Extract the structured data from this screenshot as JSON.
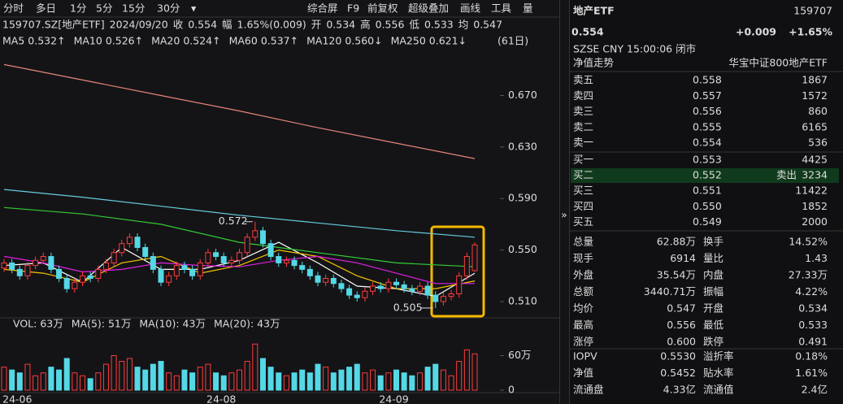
{
  "toolbar": {
    "left_tabs": [
      "分时",
      "多日",
      "1分",
      "5分",
      "15分",
      "30分",
      "▾"
    ],
    "right_tabs": [
      "综合屏",
      "F9",
      "前复权",
      "超级叠加",
      "画线",
      "工具",
      "量"
    ]
  },
  "info_bar": [
    {
      "text": "159707.SZ[地产ETF]",
      "color": "#dddddd"
    },
    {
      "text": "2024/09/20",
      "color": "#dddddd"
    },
    {
      "label": "收",
      "text": "0.554",
      "color": "#ff3b3b"
    },
    {
      "label": "幅",
      "text": "1.65%(0.009)",
      "color": "#ff3b3b"
    },
    {
      "label": "开",
      "text": "0.534",
      "color": "#2ecc40"
    },
    {
      "label": "高",
      "text": "0.556",
      "color": "#ff3b3b"
    },
    {
      "label": "低",
      "text": "0.533",
      "color": "#2ecc40"
    },
    {
      "label": "均",
      "text": "0.547",
      "color": "#ff3b3b"
    }
  ],
  "period": "(61日)",
  "chart_data": {
    "type": "candlestick",
    "categories": [
      null,
      null,
      "24-06",
      null,
      null,
      null,
      null,
      null,
      null,
      null,
      null,
      null,
      null,
      null,
      null,
      null,
      null,
      null,
      null,
      null,
      null,
      null,
      null,
      null,
      null,
      null,
      null,
      null,
      "24-08",
      null,
      null,
      null,
      null,
      null,
      null,
      null,
      null,
      null,
      null,
      null,
      null,
      null,
      null,
      null,
      null,
      null,
      null,
      null,
      null,
      null,
      "24-09",
      null,
      null,
      null,
      null,
      null,
      null,
      null,
      null,
      null,
      null
    ],
    "open": [
      0.536,
      0.54,
      0.535,
      0.53,
      0.538,
      0.542,
      0.545,
      0.535,
      0.528,
      0.52,
      0.525,
      0.53,
      0.528,
      0.535,
      0.54,
      0.548,
      0.555,
      0.56,
      0.552,
      0.545,
      0.535,
      0.525,
      0.53,
      0.538,
      0.535,
      0.53,
      0.54,
      0.548,
      0.545,
      0.54,
      0.542,
      0.548,
      0.56,
      0.565,
      0.555,
      0.545,
      0.54,
      0.542,
      0.538,
      0.535,
      0.53,
      0.525,
      0.528,
      0.524,
      0.52,
      0.515,
      0.513,
      0.518,
      0.522,
      0.52,
      0.525,
      0.523,
      0.52,
      0.518,
      0.522,
      0.515,
      0.51,
      0.514,
      0.516,
      0.53,
      0.534
    ],
    "high": [
      0.543,
      0.543,
      0.538,
      0.541,
      0.545,
      0.548,
      0.548,
      0.538,
      0.531,
      0.528,
      0.533,
      0.533,
      0.538,
      0.543,
      0.551,
      0.558,
      0.563,
      0.563,
      0.555,
      0.548,
      0.538,
      0.533,
      0.541,
      0.541,
      0.538,
      0.543,
      0.551,
      0.551,
      0.548,
      0.545,
      0.551,
      0.563,
      0.572,
      0.568,
      0.558,
      0.548,
      0.545,
      0.545,
      0.541,
      0.538,
      0.533,
      0.531,
      0.531,
      0.527,
      0.523,
      0.518,
      0.521,
      0.525,
      0.525,
      0.528,
      0.528,
      0.526,
      0.523,
      0.525,
      0.525,
      0.518,
      0.517,
      0.519,
      0.533,
      0.548,
      0.556
    ],
    "low": [
      0.533,
      0.532,
      0.527,
      0.527,
      0.535,
      0.539,
      0.532,
      0.525,
      0.517,
      0.517,
      0.522,
      0.525,
      0.525,
      0.532,
      0.537,
      0.545,
      0.552,
      0.549,
      0.542,
      0.532,
      0.522,
      0.522,
      0.527,
      0.532,
      0.527,
      0.527,
      0.537,
      0.542,
      0.537,
      0.537,
      0.539,
      0.545,
      0.557,
      0.552,
      0.542,
      0.537,
      0.537,
      0.535,
      0.532,
      0.527,
      0.522,
      0.522,
      0.521,
      0.517,
      0.512,
      0.51,
      0.51,
      0.515,
      0.517,
      0.517,
      0.52,
      0.517,
      0.515,
      0.515,
      0.512,
      0.505,
      0.507,
      0.511,
      0.513,
      0.527,
      0.533
    ],
    "close": [
      0.54,
      0.535,
      0.53,
      0.538,
      0.542,
      0.545,
      0.535,
      0.528,
      0.52,
      0.525,
      0.53,
      0.528,
      0.535,
      0.54,
      0.548,
      0.555,
      0.56,
      0.552,
      0.545,
      0.535,
      0.525,
      0.53,
      0.538,
      0.535,
      0.53,
      0.54,
      0.548,
      0.545,
      0.54,
      0.542,
      0.548,
      0.56,
      0.565,
      0.555,
      0.545,
      0.54,
      0.542,
      0.538,
      0.535,
      0.53,
      0.525,
      0.528,
      0.524,
      0.52,
      0.515,
      0.513,
      0.518,
      0.522,
      0.52,
      0.525,
      0.523,
      0.52,
      0.518,
      0.522,
      0.515,
      0.51,
      0.514,
      0.516,
      0.53,
      0.545,
      0.554
    ],
    "high_labels": [
      null,
      null,
      null,
      null,
      null,
      null,
      null,
      null,
      null,
      null,
      null,
      null,
      null,
      null,
      null,
      null,
      null,
      null,
      null,
      null,
      null,
      null,
      null,
      null,
      null,
      null,
      null,
      null,
      null,
      null,
      null,
      null,
      "0.572",
      null,
      null,
      null,
      null,
      null,
      null,
      null,
      null,
      null,
      null,
      null,
      null,
      null,
      null,
      null,
      null,
      null,
      null,
      null,
      null,
      null,
      null,
      null,
      null,
      null,
      null,
      null,
      null
    ],
    "low_labels": [
      null,
      null,
      null,
      null,
      null,
      null,
      null,
      null,
      null,
      null,
      null,
      null,
      null,
      null,
      null,
      null,
      null,
      null,
      null,
      null,
      null,
      null,
      null,
      null,
      null,
      null,
      null,
      null,
      null,
      null,
      null,
      null,
      null,
      null,
      null,
      null,
      null,
      null,
      null,
      null,
      null,
      null,
      null,
      null,
      null,
      null,
      null,
      null,
      null,
      null,
      null,
      null,
      null,
      null,
      null,
      "0.505",
      null,
      null,
      null,
      null,
      null
    ],
    "up_color": "#ff3b3b",
    "down_color": "#54d8e6",
    "ylim": [
      0.498,
      0.705
    ],
    "yticks": [
      {
        "value": 0.51,
        "label": "0.510"
      },
      {
        "value": 0.55,
        "label": "0.550"
      },
      {
        "value": 0.59,
        "label": "0.590"
      },
      {
        "value": 0.63,
        "label": "0.630"
      },
      {
        "value": 0.67,
        "label": "0.670"
      }
    ],
    "ma_lines": [
      {
        "name": "MA5",
        "label": "0.532↑",
        "color": "#ffffff",
        "x": [
          0,
          5,
          10,
          15,
          20,
          25,
          30,
          35,
          40,
          45,
          50,
          55,
          60
        ],
        "values": [
          0.538,
          0.54,
          0.525,
          0.552,
          0.535,
          0.535,
          0.542,
          0.556,
          0.54,
          0.522,
          0.52,
          0.514,
          0.532
        ]
      },
      {
        "name": "MA10",
        "label": "0.526↑",
        "color": "#f5c400",
        "x": [
          0,
          5,
          10,
          15,
          20,
          25,
          30,
          35,
          40,
          45,
          50,
          55,
          60
        ],
        "values": [
          0.535,
          0.532,
          0.525,
          0.54,
          0.545,
          0.532,
          0.538,
          0.55,
          0.545,
          0.53,
          0.52,
          0.52,
          0.526
        ]
      },
      {
        "name": "MA20",
        "label": "0.524↑",
        "color": "#e020e0",
        "x": [
          0,
          5,
          10,
          15,
          20,
          25,
          30,
          35,
          40,
          45,
          50,
          55,
          60
        ],
        "values": [
          0.545,
          0.54,
          0.533,
          0.535,
          0.54,
          0.538,
          0.537,
          0.542,
          0.545,
          0.54,
          0.532,
          0.524,
          0.524
        ]
      },
      {
        "name": "MA60",
        "label": "0.537↑",
        "color": "#33cc33",
        "x": [
          0,
          10,
          20,
          30,
          40,
          50,
          60
        ],
        "values": [
          0.583,
          0.578,
          0.57,
          0.556,
          0.548,
          0.54,
          0.537
        ]
      },
      {
        "name": "MA120",
        "label": "0.560↓",
        "color": "#66ccdd",
        "x": [
          0,
          10,
          20,
          30,
          40,
          50,
          60
        ],
        "values": [
          0.597,
          0.591,
          0.584,
          0.577,
          0.571,
          0.565,
          0.56
        ]
      },
      {
        "name": "MA250",
        "label": "0.621↓",
        "color": "#e6857a",
        "x": [
          0,
          10,
          20,
          30,
          40,
          50,
          60
        ],
        "values": [
          0.694,
          0.682,
          0.67,
          0.658,
          0.645,
          0.633,
          0.621
        ]
      }
    ]
  },
  "volume": {
    "header": [
      {
        "text": "VOL: 63万",
        "color": "#dddddd"
      },
      {
        "text": "MA(5): 51万",
        "color": "#dddddd"
      },
      {
        "text": "MA(10): 43万",
        "color": "#f5c400"
      },
      {
        "text": "MA(20): 43万",
        "color": "#e020e0"
      }
    ],
    "values": [
      40,
      35,
      30,
      45,
      25,
      30,
      40,
      35,
      55,
      30,
      25,
      20,
      30,
      45,
      60,
      50,
      55,
      40,
      35,
      45,
      50,
      30,
      25,
      35,
      30,
      40,
      45,
      30,
      25,
      30,
      35,
      50,
      80,
      55,
      40,
      30,
      25,
      30,
      35,
      30,
      45,
      40,
      30,
      35,
      40,
      45,
      30,
      35,
      25,
      30,
      35,
      30,
      25,
      30,
      40,
      45,
      35,
      25,
      50,
      70,
      63
    ],
    "ylim": [
      0,
      110
    ],
    "yticks": [
      0,
      {
        "value": 60,
        "label": "60万"
      }
    ]
  },
  "quote": {
    "name": "地产ETF",
    "code": "159707",
    "price": "0.554",
    "change": "+0.009",
    "change_pct": "+1.65%",
    "meta": "SZSE  CNY  15:00:06  闭市",
    "nav_tab": "净值走势",
    "fund_name": "华宝中证800地产ETF",
    "book": [
      {
        "label": "卖五",
        "price": "0.558",
        "volume": "1867"
      },
      {
        "label": "卖四",
        "price": "0.557",
        "volume": "1572"
      },
      {
        "label": "卖三",
        "price": "0.556",
        "volume": "860"
      },
      {
        "label": "卖二",
        "price": "0.555",
        "volume": "6165"
      },
      {
        "label": "卖一",
        "price": "0.554",
        "volume": "536"
      },
      {
        "label": "买一",
        "price": "0.553",
        "volume": "4425"
      },
      {
        "label": "买二",
        "price": "0.552",
        "note": "卖出",
        "volume": "3234"
      },
      {
        "label": "买三",
        "price": "0.551",
        "volume": "11422"
      },
      {
        "label": "买四",
        "price": "0.550",
        "volume": "1852"
      },
      {
        "label": "买五",
        "price": "0.549",
        "volume": "2000"
      }
    ],
    "stats": [
      {
        "cells": [
          "总量",
          "62.88万",
          "换手",
          "14.52%"
        ],
        "colors": [
          "#dddddd",
          "#dddddd"
        ]
      },
      {
        "cells": [
          "现手",
          "6914",
          "量比",
          "1.43"
        ],
        "colors": [
          "#dddddd",
          "#dddddd"
        ]
      },
      {
        "cells": [
          "外盘",
          "35.54万",
          "内盘",
          "27.33万"
        ],
        "colors": [
          "#ff3b3b",
          "#2ecc40"
        ]
      },
      {
        "cells": [
          "总额",
          "3440.71万",
          "振幅",
          "4.22%"
        ],
        "colors": [
          "#dddddd",
          "#dddddd"
        ]
      },
      {
        "cells": [
          "均价",
          "0.547",
          "开盘",
          "0.534"
        ],
        "colors": [
          "#ff3b3b",
          "#2ecc40"
        ]
      },
      {
        "cells": [
          "最高",
          "0.556",
          "最低",
          "0.533"
        ],
        "colors": [
          "#ff3b3b",
          "#2ecc40"
        ]
      },
      {
        "cells": [
          "涨停",
          "0.600",
          "跌停",
          "0.491"
        ],
        "colors": [
          "#ff3b3b",
          "#2ecc40"
        ]
      }
    ],
    "stats2": [
      {
        "cells": [
          "IOPV",
          "0.5530",
          "溢折率",
          "0.18%"
        ],
        "colors": [
          "#dddddd",
          "#ff3b3b"
        ]
      },
      {
        "cells": [
          "净值",
          "0.5452",
          "贴水率",
          "1.61%"
        ],
        "colors": [
          "#dddddd",
          "#ff3b3b"
        ]
      },
      {
        "cells": [
          "流通盘",
          "4.33亿",
          "流通值",
          "2.4亿"
        ],
        "colors": [
          "#dddddd",
          "#dddddd"
        ]
      }
    ]
  }
}
